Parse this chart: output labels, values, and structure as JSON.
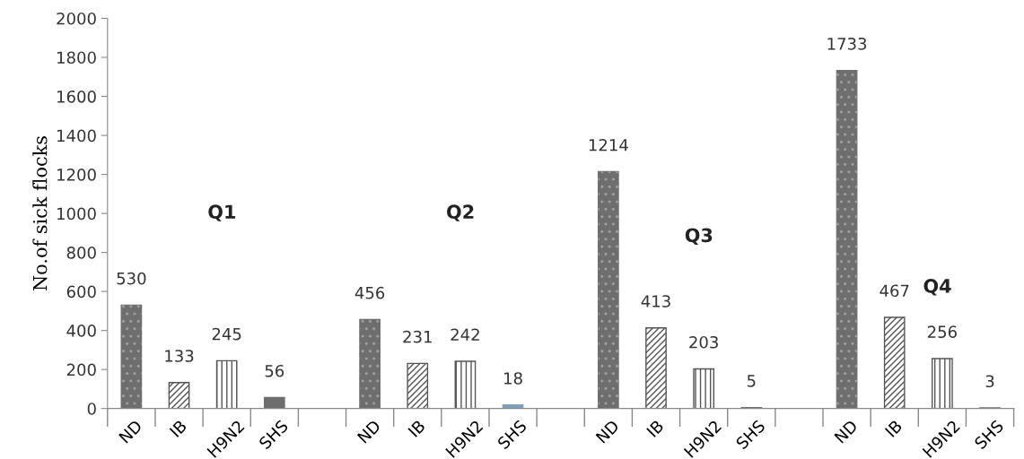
{
  "chart_data": {
    "type": "bar",
    "ylabel": "No.of sick flocks",
    "categories": [
      "ND",
      "IB",
      "H9N2",
      "SHS",
      null,
      "ND",
      "IB",
      "H9N2",
      "SHS",
      null,
      "ND",
      "IB",
      "H9N2",
      "SHS",
      null,
      "ND",
      "IB",
      "H9N2",
      "SHS"
    ],
    "values": [
      530,
      133,
      245,
      56,
      null,
      456,
      231,
      242,
      18,
      null,
      1214,
      413,
      203,
      5,
      null,
      1733,
      467,
      256,
      3
    ],
    "colors": [
      "#6e6e6e",
      "#ffffff",
      "#ffffff",
      "#6e6e6e",
      null,
      "#6e6e6e",
      "#ffffff",
      "#ffffff",
      "#7f9fbf",
      null,
      "#6e6e6e",
      "#ffffff",
      "#ffffff",
      "#6e6e6e",
      null,
      "#6e6e6e",
      "#ffffff",
      "#ffffff",
      "#6e6e6e"
    ],
    "ylim": [
      0,
      2000
    ],
    "yticks": [
      0,
      200,
      400,
      600,
      800,
      1000,
      1200,
      1400,
      1600,
      1800,
      2000
    ],
    "data_labels": true,
    "grid": false,
    "legend": false,
    "annotations": [
      "Q1",
      "Q2",
      "Q3",
      "Q4"
    ]
  }
}
